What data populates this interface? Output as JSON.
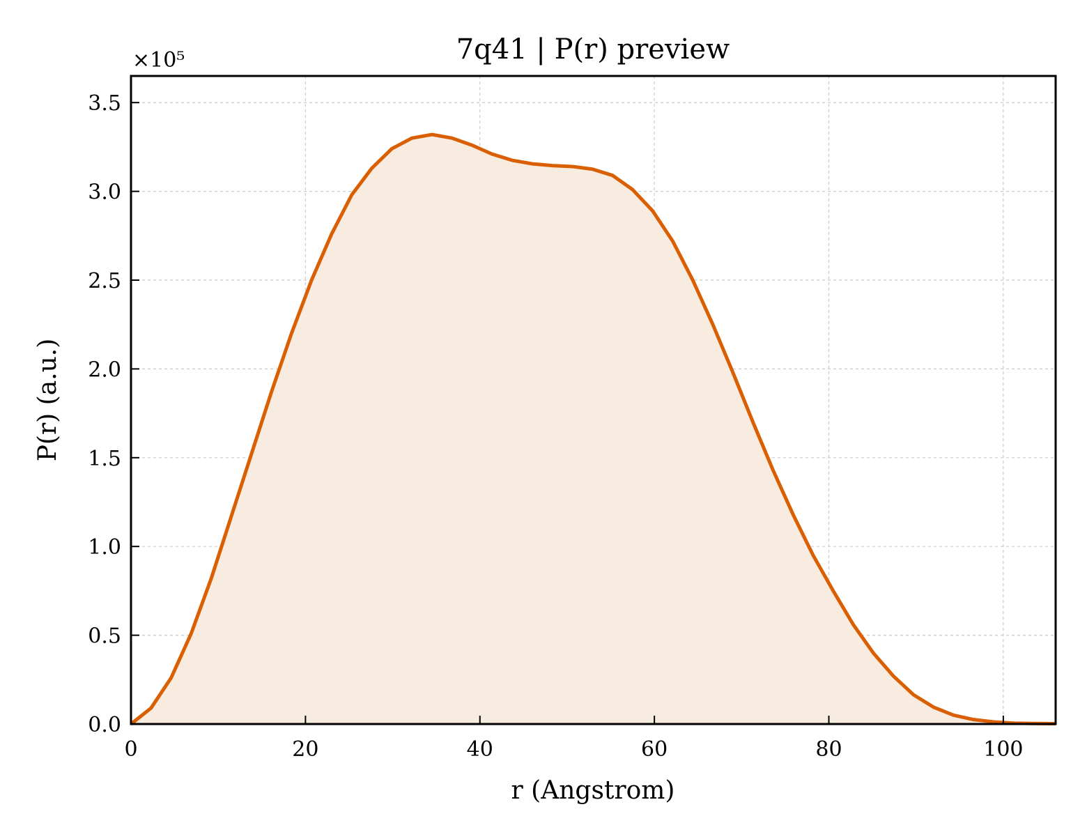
{
  "chart_data": {
    "type": "area",
    "title": "7q41 | P(r) preview",
    "xlabel": "r (Angstrom)",
    "ylabel": "P(r) (a.u.)",
    "y_offset_label": "×10⁵",
    "xlim": [
      0,
      106
    ],
    "ylim": [
      0,
      3.65
    ],
    "y_scale_multiplier": 100000,
    "grid": true,
    "x_ticks": [
      0,
      20,
      40,
      60,
      80,
      100
    ],
    "x_tick_labels": [
      "0",
      "20",
      "40",
      "60",
      "80",
      "100"
    ],
    "y_ticks": [
      0,
      0.5,
      1.0,
      1.5,
      2.0,
      2.5,
      3.0,
      3.5
    ],
    "y_tick_labels": [
      "0.0",
      "0.5",
      "1.0",
      "1.5",
      "2.0",
      "2.5",
      "3.0",
      "3.5"
    ],
    "colors": {
      "line": "#d95f02",
      "fill": "#f8ebe0",
      "grid": "#cccccc"
    },
    "series": [
      {
        "x": [
          0,
          2.3,
          4.6,
          6.9,
          9.2,
          11.5,
          13.8,
          16.1,
          18.4,
          20.7,
          23.0,
          25.3,
          27.6,
          29.9,
          32.2,
          34.5,
          36.8,
          39.1,
          41.4,
          43.7,
          46.0,
          48.3,
          50.6,
          52.9,
          55.2,
          57.5,
          59.8,
          62.1,
          64.4,
          66.7,
          69.0,
          71.3,
          73.6,
          75.9,
          78.2,
          80.5,
          82.8,
          85.1,
          87.4,
          89.7,
          92.0,
          94.3,
          96.6,
          98.9,
          101.2,
          103.5,
          106.0
        ],
        "values": [
          0.0,
          0.09,
          0.26,
          0.51,
          0.82,
          1.17,
          1.52,
          1.87,
          2.2,
          2.5,
          2.76,
          2.98,
          3.13,
          3.24,
          3.3,
          3.32,
          3.3,
          3.26,
          3.21,
          3.175,
          3.155,
          3.145,
          3.14,
          3.125,
          3.09,
          3.01,
          2.89,
          2.72,
          2.5,
          2.25,
          1.98,
          1.7,
          1.43,
          1.18,
          0.95,
          0.75,
          0.56,
          0.4,
          0.27,
          0.165,
          0.095,
          0.05,
          0.025,
          0.012,
          0.005,
          0.003,
          0.002
        ]
      }
    ]
  }
}
